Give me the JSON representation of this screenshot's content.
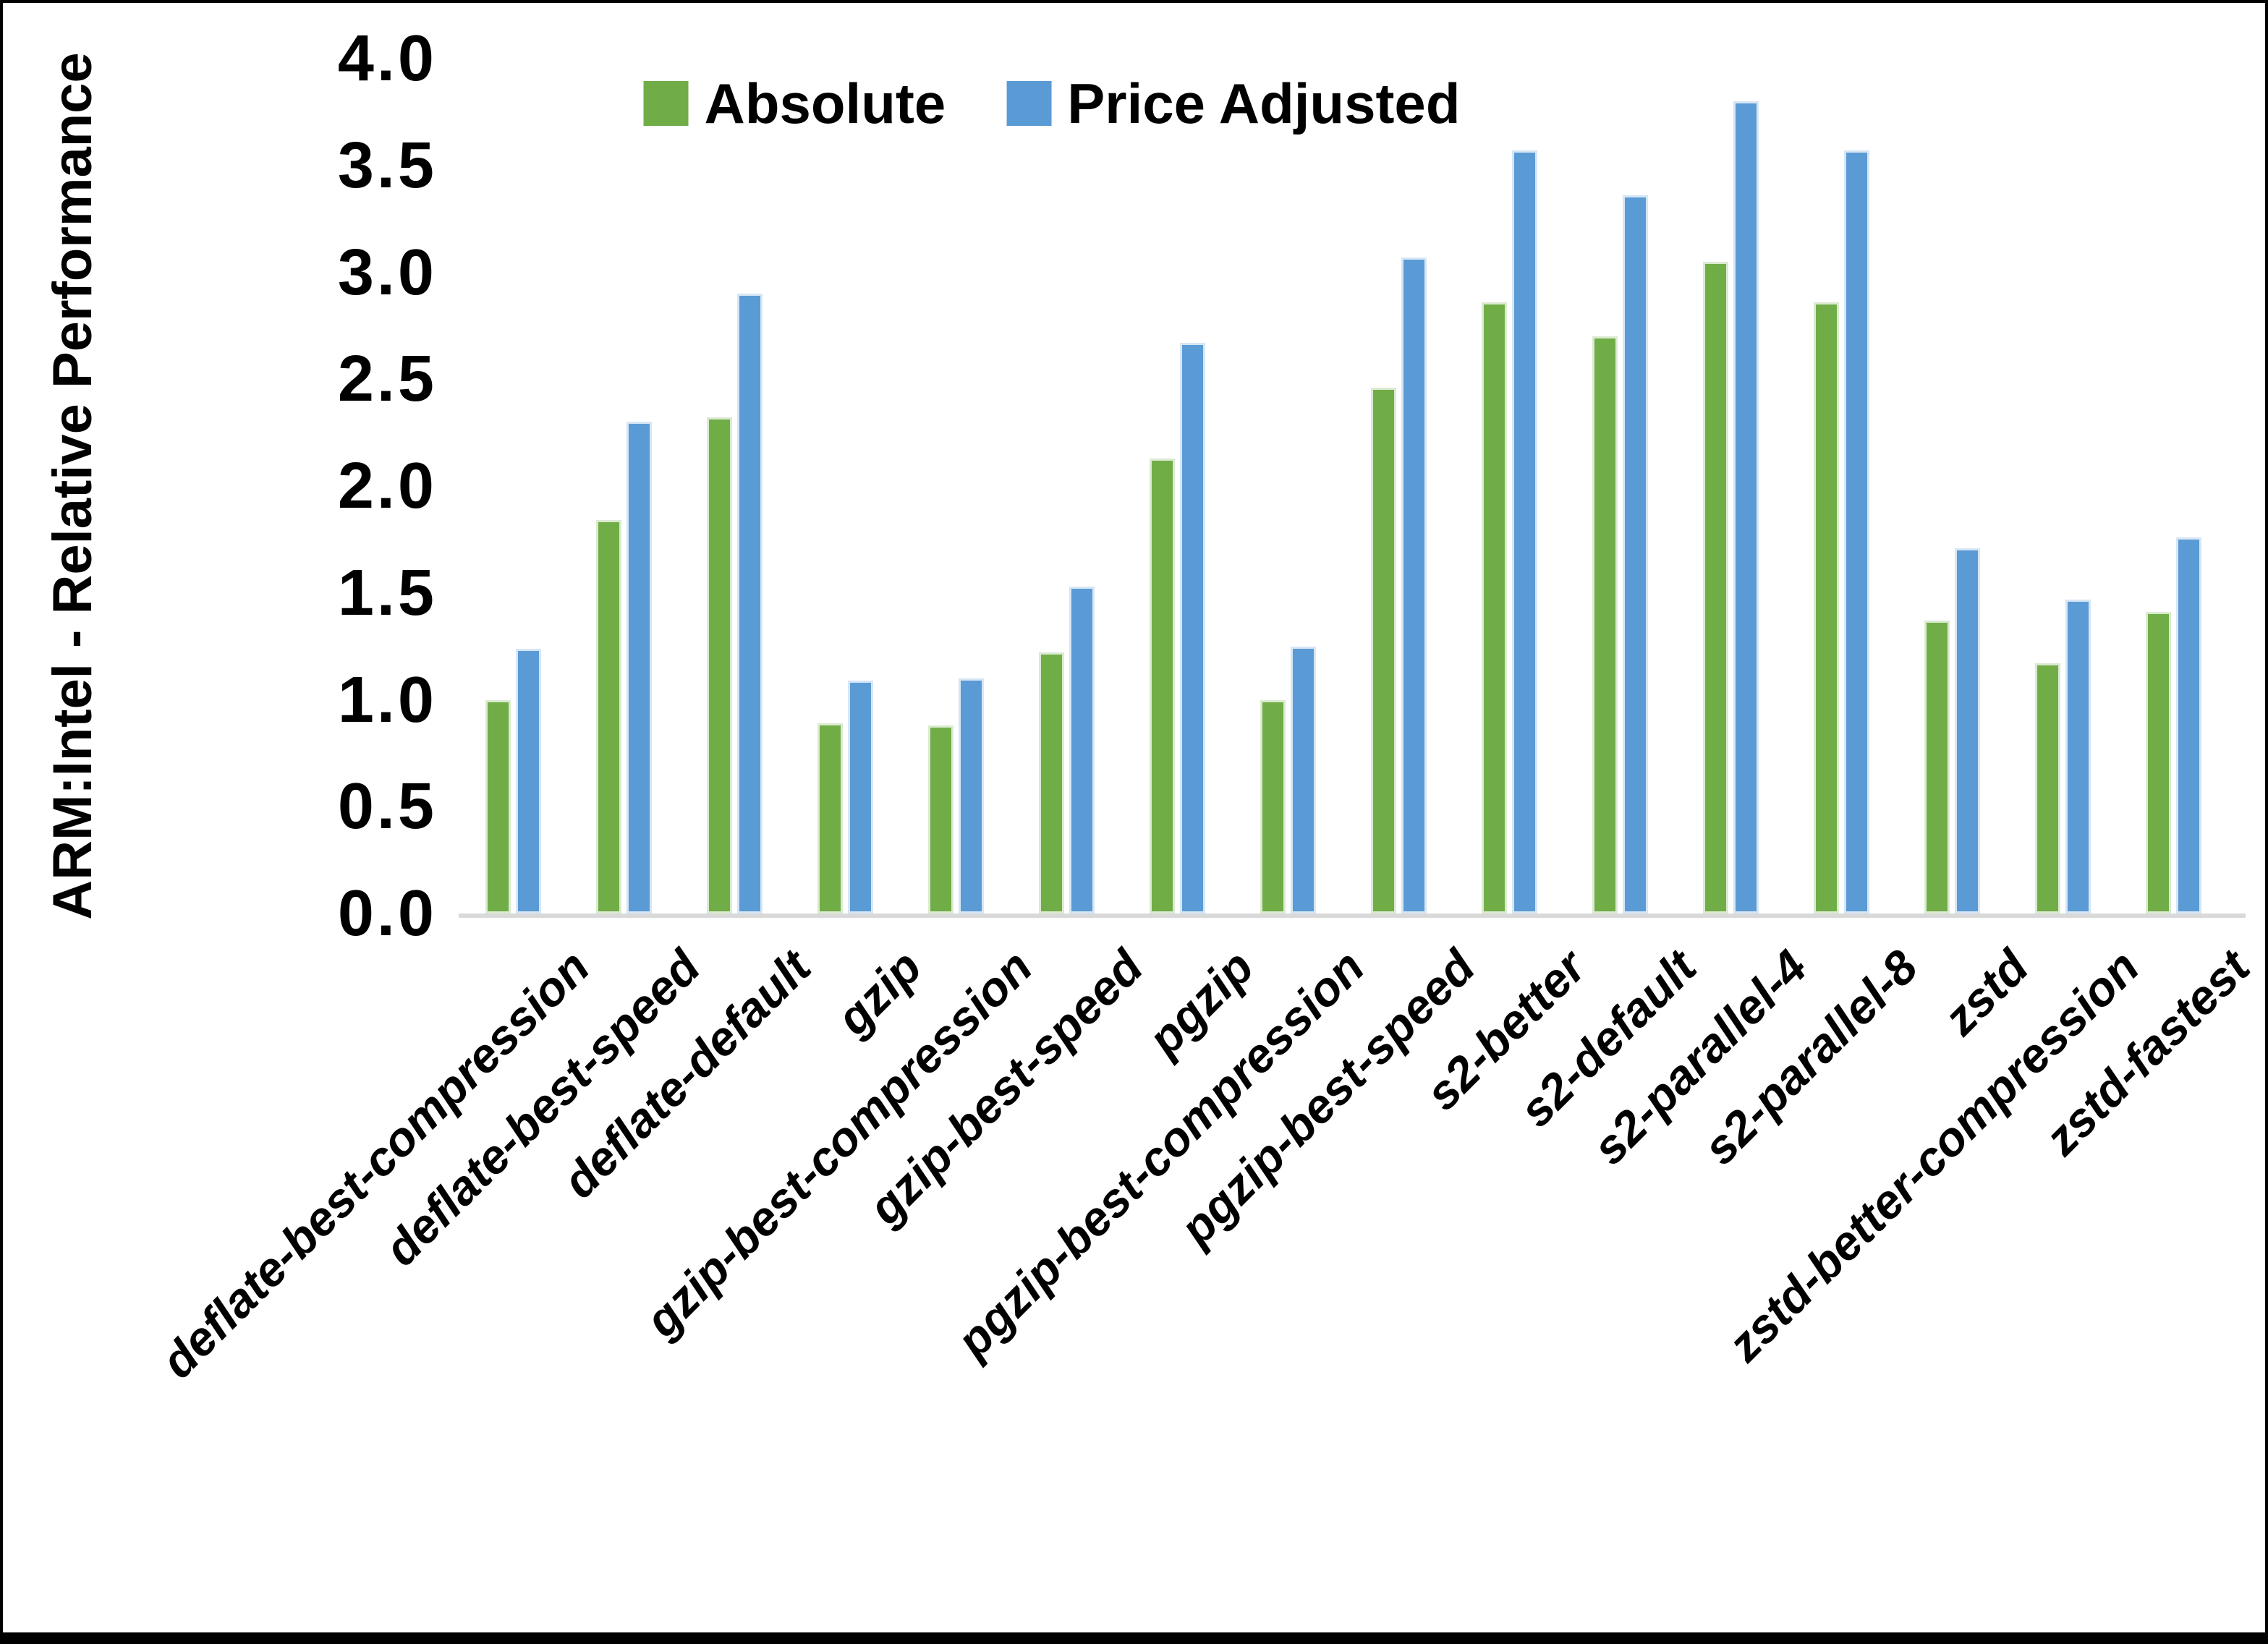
{
  "chart_data": {
    "type": "bar",
    "title": "",
    "xlabel": "",
    "ylabel": "ARM:Intel - Relative Performance",
    "ylim": [
      0.0,
      4.0
    ],
    "ytick_step": 0.5,
    "ytick_labels": [
      "0.0",
      "0.5",
      "1.0",
      "1.5",
      "2.0",
      "2.5",
      "3.0",
      "3.5",
      "4.0"
    ],
    "grid": false,
    "legend_position": "top-center",
    "categories": [
      "deflate-best-compression",
      "deflate-best-speed",
      "deflate-default",
      "gzip",
      "gzip-best-compression",
      "gzip-best-speed",
      "pgzip",
      "pgzip-best-compression",
      "pgzip-best-speed",
      "s2-better",
      "s2-default",
      "s2-parallel-4",
      "s2-parallel-8",
      "zstd",
      "zstd-better-compression",
      "zstd-fastest"
    ],
    "series": [
      {
        "name": "Absolute",
        "color": "#70AD47",
        "values": [
          1.0,
          1.84,
          2.32,
          0.89,
          0.88,
          1.22,
          2.13,
          1.0,
          2.46,
          2.86,
          2.7,
          3.05,
          2.86,
          1.37,
          1.17,
          1.41
        ]
      },
      {
        "name": "Price Adjusted",
        "color": "#5B9BD5",
        "values": [
          1.24,
          2.3,
          2.9,
          1.09,
          1.1,
          1.53,
          2.67,
          1.25,
          3.07,
          3.57,
          3.36,
          3.8,
          3.57,
          1.71,
          1.47,
          1.76
        ]
      }
    ]
  },
  "colors": {
    "background": "#FFFFFF",
    "frame": "#000000",
    "axis_line": "#D9D9D9",
    "text": "#000000"
  }
}
